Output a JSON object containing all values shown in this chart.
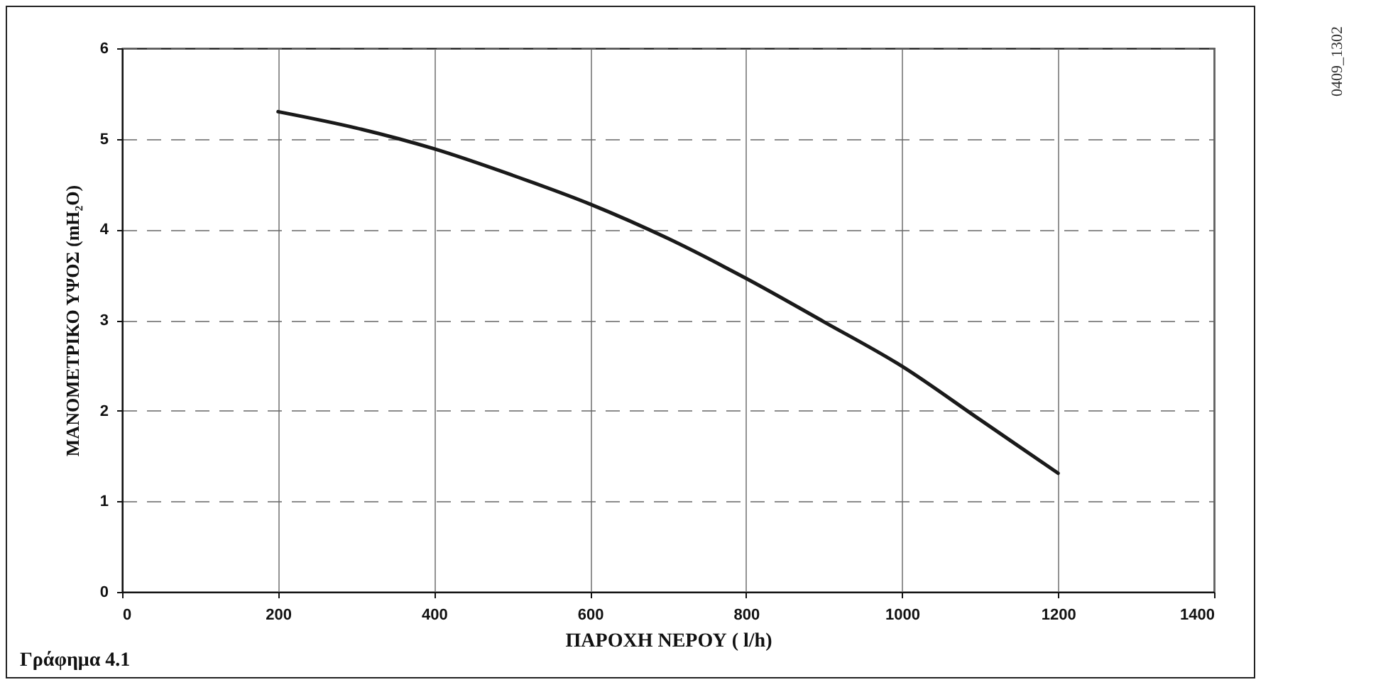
{
  "chart_data": {
    "type": "line",
    "xlabel": "ΠΑΡΟΧΗ ΝΕΡΟΥ ( l/h)",
    "ylabel": "ΜΑΝΟΜΕΤΡΙΚΟ ΥΨΟΣ (mH₂O)",
    "annotations": [
      "Γράφημα 4.1",
      "0409_1302"
    ],
    "x": [
      200,
      300,
      400,
      500,
      600,
      700,
      800,
      900,
      1000,
      1100,
      1200
    ],
    "series": [
      {
        "color": "#1a1a1a",
        "values": [
          5.3,
          5.12,
          4.89,
          4.6,
          4.28,
          3.9,
          3.46,
          2.98,
          2.49,
          1.9,
          1.31
        ]
      }
    ],
    "xlim": [
      0,
      1400
    ],
    "xticks": [
      0,
      200,
      400,
      600,
      800,
      1000,
      1200,
      1400
    ],
    "ylim": [
      0,
      6
    ],
    "yticks": [
      0,
      1,
      2,
      3,
      4,
      5,
      6
    ],
    "grid": true,
    "marker": "none",
    "line_style": "solid"
  }
}
